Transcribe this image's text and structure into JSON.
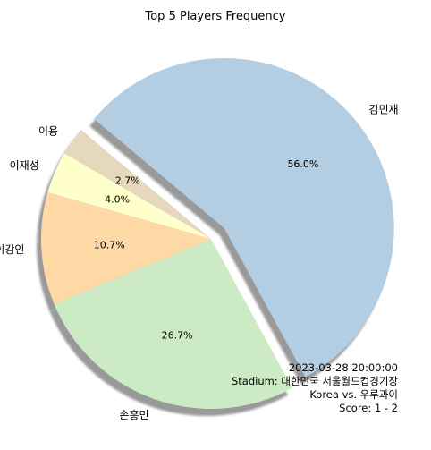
{
  "chart_data": {
    "type": "pie",
    "title": "Top 5 Players Frequency",
    "categories": [
      "김민재",
      "손흥민",
      "이강인",
      "이재성",
      "이용"
    ],
    "values": [
      56.0,
      26.7,
      10.7,
      4.0,
      2.7
    ],
    "value_labels": [
      "56.0%",
      "26.7%",
      "10.7%",
      "4.0%",
      "2.7%"
    ],
    "colors": [
      "#b3cde3",
      "#ccebc5",
      "#fed9a6",
      "#ffffcc",
      "#e5d8bd"
    ],
    "explode": [
      true,
      false,
      false,
      false,
      false
    ],
    "shadow": true,
    "start_angle_deg": 140,
    "direction": "clockwise"
  },
  "annotation": {
    "lines": [
      "2023-03-28 20:00:00",
      "Stadium: 대한민국 서울월드컵경기장",
      "Korea vs. 우루과이",
      "Score: 1 - 2"
    ]
  }
}
